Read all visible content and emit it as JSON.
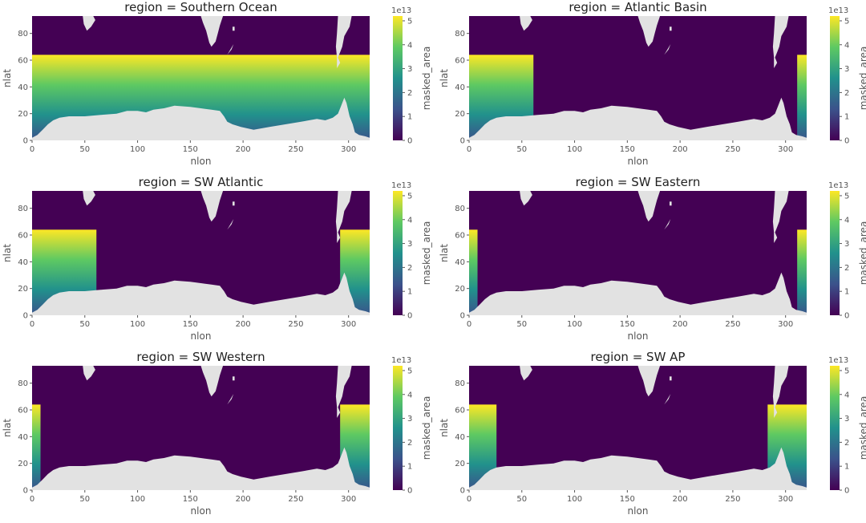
{
  "figure": {
    "xlabel": "nlon",
    "ylabel": "nlat",
    "colorbar_label": "masked_area",
    "colorbar_exponent": "1e13"
  },
  "colors": {
    "land": "#e2e2e2",
    "background": "#ffffff",
    "viridis": [
      "#440154",
      "#3b528b",
      "#21918c",
      "#5ec962",
      "#fde725"
    ]
  },
  "chart_data": [
    {
      "type": "heatmap",
      "title": "region = Southern Ocean",
      "xlabel": "nlon",
      "ylabel": "nlat",
      "xlim": [
        0,
        320
      ],
      "ylim": [
        0,
        93
      ],
      "xticks": [
        "0",
        "50",
        "100",
        "150",
        "200",
        "250",
        "300"
      ],
      "yticks": [
        "0",
        "20",
        "40",
        "60",
        "80"
      ],
      "colorbar": {
        "label": "masked_area",
        "exponent": "1e13",
        "range": [
          0,
          5.2
        ],
        "ticks": [
          "0",
          "1",
          "2",
          "3",
          "4",
          "5"
        ]
      },
      "masked_region": {
        "nlon_ranges": [
          [
            0,
            320
          ]
        ],
        "nlat_range": [
          0,
          64
        ]
      }
    },
    {
      "type": "heatmap",
      "title": "region = Atlantic Basin",
      "xlabel": "nlon",
      "ylabel": "nlat",
      "xlim": [
        0,
        320
      ],
      "ylim": [
        0,
        93
      ],
      "xticks": [
        "0",
        "50",
        "100",
        "150",
        "200",
        "250",
        "300"
      ],
      "yticks": [
        "0",
        "20",
        "40",
        "60",
        "80"
      ],
      "colorbar": {
        "label": "masked_area",
        "exponent": "1e13",
        "range": [
          0,
          5.2
        ],
        "ticks": [
          "0",
          "1",
          "2",
          "3",
          "4",
          "5"
        ]
      },
      "masked_region": {
        "nlon_ranges": [
          [
            0,
            61
          ],
          [
            311,
            320
          ]
        ],
        "nlat_range": [
          0,
          64
        ]
      }
    },
    {
      "type": "heatmap",
      "title": "region = SW Atlantic",
      "xlabel": "nlon",
      "ylabel": "nlat",
      "xlim": [
        0,
        320
      ],
      "ylim": [
        0,
        93
      ],
      "xticks": [
        "0",
        "50",
        "100",
        "150",
        "200",
        "250",
        "300"
      ],
      "yticks": [
        "0",
        "20",
        "40",
        "60",
        "80"
      ],
      "colorbar": {
        "label": "masked_area",
        "exponent": "1e13",
        "range": [
          0,
          5.2
        ],
        "ticks": [
          "0",
          "1",
          "2",
          "3",
          "4",
          "5"
        ]
      },
      "masked_region": {
        "nlon_ranges": [
          [
            0,
            61
          ],
          [
            292,
            320
          ]
        ],
        "nlat_range": [
          0,
          64
        ]
      }
    },
    {
      "type": "heatmap",
      "title": "region = SW Eastern",
      "xlabel": "nlon",
      "ylabel": "nlat",
      "xlim": [
        0,
        320
      ],
      "ylim": [
        0,
        93
      ],
      "xticks": [
        "0",
        "50",
        "100",
        "150",
        "200",
        "250",
        "300"
      ],
      "yticks": [
        "0",
        "20",
        "40",
        "60",
        "80"
      ],
      "colorbar": {
        "label": "masked_area",
        "exponent": "1e13",
        "range": [
          0,
          5.2
        ],
        "ticks": [
          "0",
          "1",
          "2",
          "3",
          "4",
          "5"
        ]
      },
      "masked_region": {
        "nlon_ranges": [
          [
            0,
            8
          ],
          [
            311,
            320
          ]
        ],
        "nlat_range": [
          0,
          64
        ]
      }
    },
    {
      "type": "heatmap",
      "title": "region = SW Western",
      "xlabel": "nlon",
      "ylabel": "nlat",
      "xlim": [
        0,
        320
      ],
      "ylim": [
        0,
        93
      ],
      "xticks": [
        "0",
        "50",
        "100",
        "150",
        "200",
        "250",
        "300"
      ],
      "yticks": [
        "0",
        "20",
        "40",
        "60",
        "80"
      ],
      "colorbar": {
        "label": "masked_area",
        "exponent": "1e13",
        "range": [
          0,
          5.2
        ],
        "ticks": [
          "0",
          "1",
          "2",
          "3",
          "4",
          "5"
        ]
      },
      "masked_region": {
        "nlon_ranges": [
          [
            0,
            8
          ],
          [
            292,
            320
          ]
        ],
        "nlat_range": [
          0,
          64
        ]
      }
    },
    {
      "type": "heatmap",
      "title": "region = SW AP",
      "xlabel": "nlon",
      "ylabel": "nlat",
      "xlim": [
        0,
        320
      ],
      "ylim": [
        0,
        93
      ],
      "xticks": [
        "0",
        "50",
        "100",
        "150",
        "200",
        "250",
        "300"
      ],
      "yticks": [
        "0",
        "20",
        "40",
        "60",
        "80"
      ],
      "colorbar": {
        "label": "masked_area",
        "exponent": "1e13",
        "range": [
          0,
          5.2
        ],
        "ticks": [
          "0",
          "1",
          "2",
          "3",
          "4",
          "5"
        ]
      },
      "masked_region": {
        "nlon_ranges": [
          [
            0,
            26
          ],
          [
            283,
            320
          ]
        ],
        "nlat_range": [
          0,
          64
        ]
      }
    }
  ]
}
